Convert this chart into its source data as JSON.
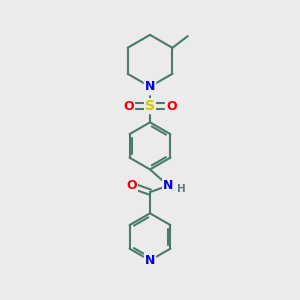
{
  "background_color": "#ebebeb",
  "bond_color": "#4a7a6a",
  "bond_width": 1.5,
  "atom_colors": {
    "N": "#0000dd",
    "O": "#ee0000",
    "S": "#cccc00",
    "C": "#000000",
    "H": "#607880"
  },
  "font_size_atom": 8.5,
  "font_size_h": 7.5,
  "fig_size": [
    3.0,
    3.0
  ],
  "dpi": 100,
  "xlim": [
    0,
    10
  ],
  "ylim": [
    0,
    10
  ]
}
